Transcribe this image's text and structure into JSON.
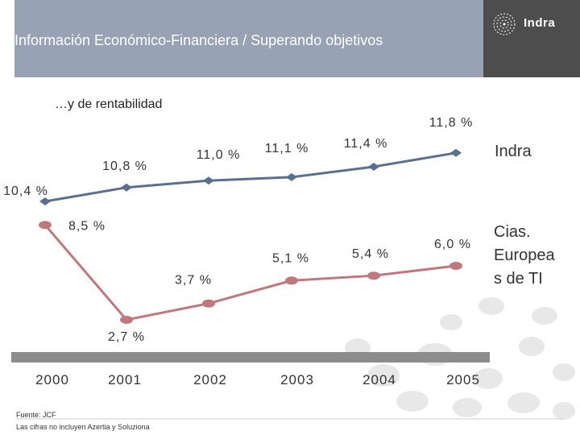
{
  "header": {
    "title": "Información Económico-Financiera / Superando objetivos",
    "logo_text": "Indra"
  },
  "subtitle": "…y de rentabilidad",
  "footer": {
    "source": "Fuente: JCF",
    "note": "Las cifras no incluyen Azertia y Soluziona"
  },
  "colors": {
    "header_bg": "#97a3b4",
    "logo_bg": "#4d4d4d",
    "indra_series": "#5b6f90",
    "peers_series": "#c0787c",
    "axis_bar": "#8c8c8c"
  },
  "chart_data": {
    "type": "line",
    "x": [
      "2000",
      "2001",
      "2002",
      "2003",
      "2004",
      "2005"
    ],
    "series": [
      {
        "name": "Indra",
        "values": [
          10.4,
          10.8,
          11.0,
          11.1,
          11.4,
          11.8
        ],
        "labels": [
          "10,4 %",
          "10,8 %",
          "11,0 %",
          "11,1 %",
          "11,4 %",
          "11,8 %"
        ],
        "color": "#5b6f90",
        "marker": "diamond"
      },
      {
        "name": "Cias. Europeas de TI",
        "values": [
          8.5,
          2.7,
          3.7,
          5.1,
          5.4,
          6.0
        ],
        "labels": [
          "8,5 %",
          "2,7 %",
          "3,7 %",
          "5,1 %",
          "5,4 %",
          "6,0 %"
        ],
        "color": "#c0787c",
        "marker": "ellipse"
      }
    ],
    "legend_position": "right",
    "grid": false
  }
}
